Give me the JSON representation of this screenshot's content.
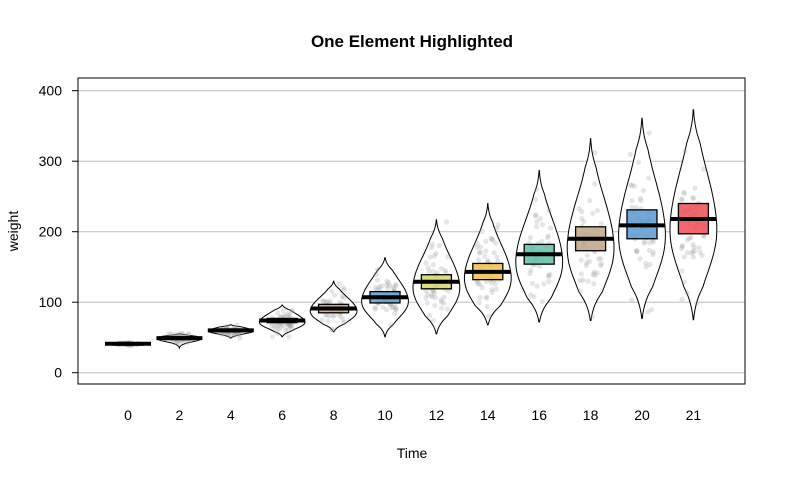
{
  "chart_data": {
    "type": "pirate",
    "title": "One Element Highlighted",
    "xlabel": "Time",
    "ylabel": "weight",
    "ylim": [
      -16,
      418
    ],
    "yticks": [
      0,
      100,
      200,
      300,
      400
    ],
    "grid": true,
    "categories": [
      "0",
      "2",
      "4",
      "6",
      "8",
      "10",
      "12",
      "14",
      "16",
      "18",
      "20",
      "21"
    ],
    "means": [
      41,
      49,
      60,
      74,
      91,
      107,
      129,
      143,
      168,
      190,
      209,
      218
    ],
    "hdi_low": [
      40,
      47,
      58,
      71,
      85,
      99,
      119,
      132,
      154,
      173,
      190,
      197
    ],
    "hdi_high": [
      42,
      51,
      62,
      77,
      97,
      115,
      139,
      155,
      182,
      207,
      231,
      240
    ],
    "min": [
      38,
      35,
      49,
      51,
      58,
      51,
      55,
      68,
      72,
      74,
      77,
      75
    ],
    "max": [
      43,
      55,
      68,
      96,
      130,
      163,
      217,
      240,
      287,
      332,
      361,
      373
    ],
    "hdi_colors": [
      "#8c8c8c",
      "#8c8c8c",
      "#8c8c8c",
      "#8c8c8c",
      "#c9a27a",
      "#5b9bd5",
      "#d6d66a",
      "#f2c14e",
      "#5fc2a8",
      "#bfa585",
      "#5a96d2",
      "#f04b54"
    ],
    "point_color": "#999999",
    "bar_color": "#000000"
  }
}
